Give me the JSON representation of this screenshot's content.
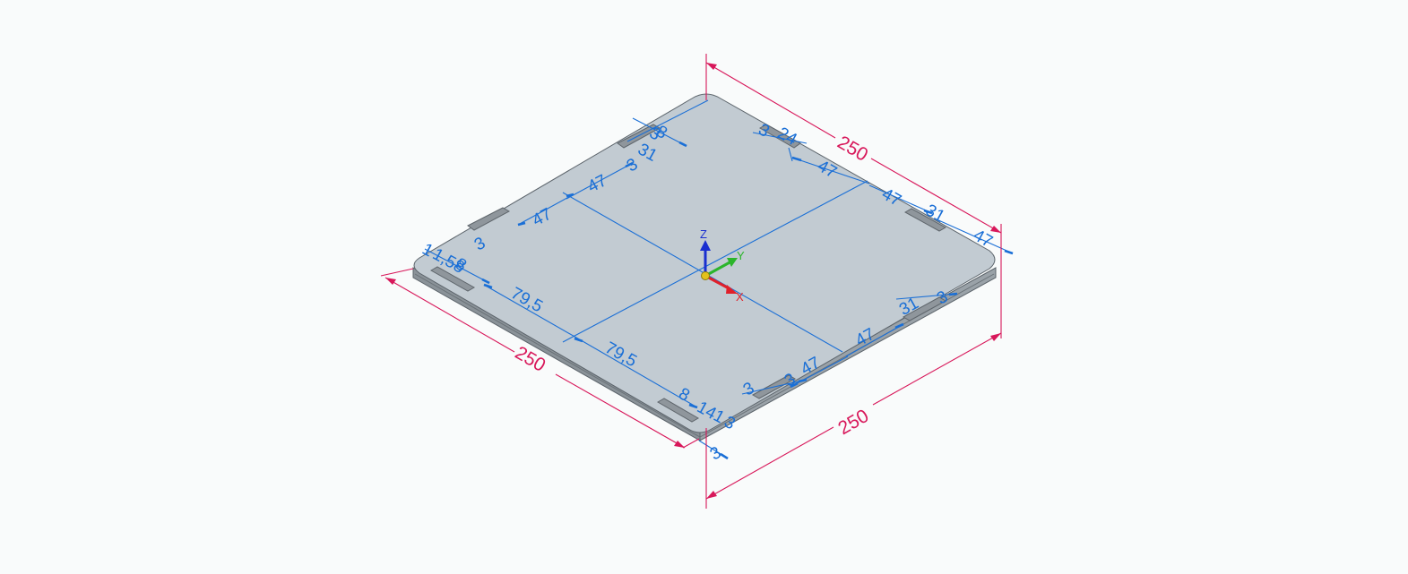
{
  "dimensions_primary": {
    "top_edge": "250",
    "left_edge": "250",
    "right_front_edge": "250",
    "color": "#d8175a"
  },
  "dimensions_sketch": {
    "color": "#1a6fd6",
    "labels": {
      "d47_a": "47",
      "d47_b": "47",
      "d47_c": "47",
      "d47_d": "47",
      "d47_e": "47",
      "d47_f": "47",
      "d47_g": "47",
      "d795_a": "79,5",
      "d795_b": "79,5",
      "d31_a": "31",
      "d31_b": "31",
      "d31_c": "31",
      "d3_a": "3",
      "d3_b": "3",
      "d3_c": "3",
      "d3_d": "3",
      "d3_e": "3",
      "d3_f": "3",
      "d3_g": "3",
      "d3_h": "3",
      "d1_a": "1",
      "d1_b": "1",
      "d158": "1,58",
      "d8_a": "8",
      "d8_b": "8",
      "d8_c": "8",
      "d24": "24",
      "d81_a": "81",
      "d81_b": "81",
      "d14": "14",
      "d3_i": "3"
    }
  },
  "triad": {
    "x_label": "X",
    "y_label": "Y",
    "z_label": "Z",
    "x_color": "#e0202a",
    "y_color": "#2bb52b",
    "z_color": "#1a2fd0",
    "origin_color": "#e3c21a"
  },
  "plate": {
    "top_color": "#c2cbd2",
    "side_color": "#8a9298",
    "edge_color": "#5b636a"
  }
}
